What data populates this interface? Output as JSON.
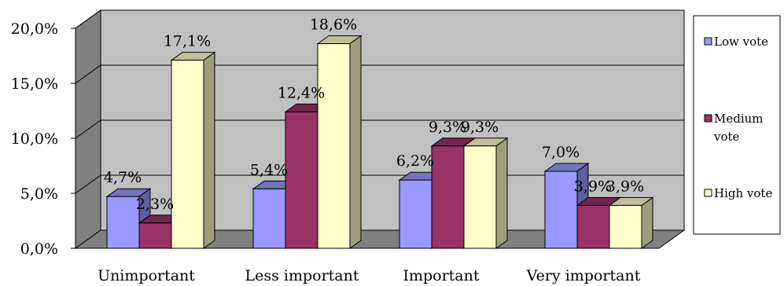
{
  "chart_data": {
    "type": "bar",
    "title": "",
    "xlabel": "",
    "ylabel": "",
    "ylim": [
      0,
      20
    ],
    "yticks": [
      "0,0%",
      "5,0%",
      "10,0%",
      "15,0%",
      "20,0%"
    ],
    "categories": [
      "Unimportant",
      "Less important",
      "Important",
      "Very important"
    ],
    "series": [
      {
        "name": "Low vote",
        "values": [
          4.7,
          5.4,
          6.2,
          7.0
        ],
        "labels": [
          "4,7%",
          "5,4%",
          "6,2%",
          "7,0%"
        ],
        "color": "#9999ff"
      },
      {
        "name": "Medium vote",
        "values": [
          2.3,
          12.4,
          9.3,
          3.9
        ],
        "labels": [
          "2,3%",
          "12,4%",
          "9,3%",
          "3,9%"
        ],
        "color": "#993366"
      },
      {
        "name": "High vote",
        "values": [
          17.1,
          18.6,
          9.3,
          3.9
        ],
        "labels": [
          "17,1%",
          "18,6%",
          "9,3%",
          "3,9%"
        ],
        "color": "#ffffcc"
      }
    ],
    "legend": {
      "position": "right",
      "entries": [
        "Low vote",
        "Medium vote",
        "High vote"
      ]
    },
    "grid": true,
    "style": "3d-clustered-column"
  }
}
